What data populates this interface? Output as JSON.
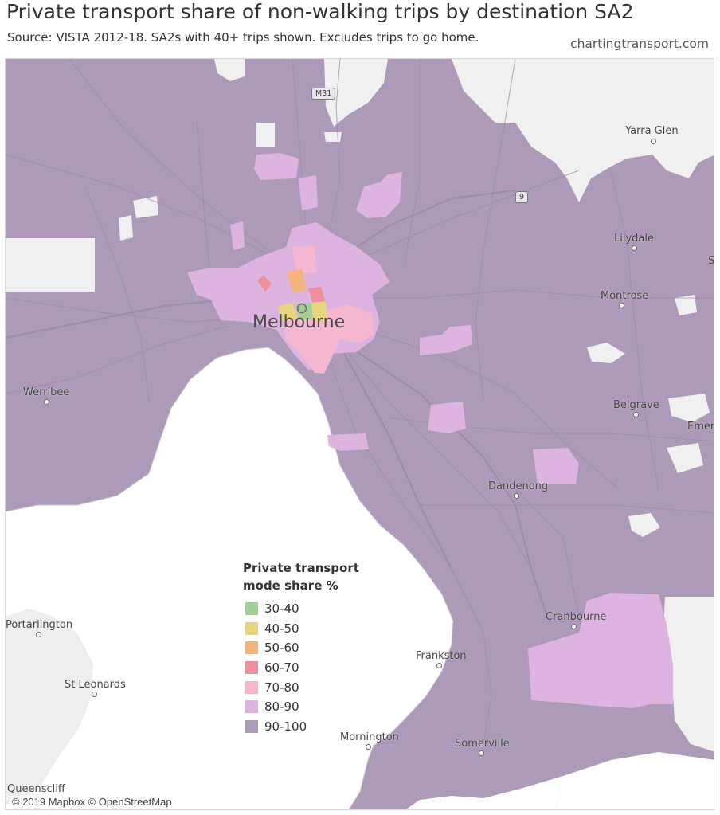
{
  "title": "Private transport share of non-walking trips by destination SA2",
  "subtitle": "Source: VISTA 2012-18. SA2s with 40+ trips shown. Excludes trips to go home.",
  "credit": "chartingtransport.com",
  "city_label": "Melbourne",
  "attribution": "© 2019 Mapbox © OpenStreetMap",
  "road_shields": [
    "M31",
    "9"
  ],
  "places": {
    "yarra_glen": "Yarra Glen",
    "lilydale": "Lilydale",
    "montrose": "Montrose",
    "belgrave": "Belgrave",
    "emerald": "Emer",
    "werribee": "Werribee",
    "dandenong": "Dandenong",
    "cranbourne": "Cranbourne",
    "frankston": "Frankston",
    "portarlington": "Portarlington",
    "st_leonards": "St Leonards",
    "mornington": "Mornington",
    "somerville": "Somerville",
    "queenscliff": "Queenscliff",
    "edge_letter": "S"
  },
  "legend": {
    "title_line1": "Private transport",
    "title_line2": "mode share %",
    "items": [
      {
        "label": "30-40",
        "color": "#a3cf97"
      },
      {
        "label": "40-50",
        "color": "#e6d57e"
      },
      {
        "label": "50-60",
        "color": "#f3b37f"
      },
      {
        "label": "60-70",
        "color": "#ee8f9b"
      },
      {
        "label": "70-80",
        "color": "#f5b6cf"
      },
      {
        "label": "80-90",
        "color": "#ddb3e0"
      },
      {
        "label": "90-100",
        "color": "#ac9ab8"
      }
    ]
  },
  "colors": {
    "water": "#ffffff",
    "no_data_land": "#f2f2f2",
    "roads": "#8f7f9c"
  }
}
